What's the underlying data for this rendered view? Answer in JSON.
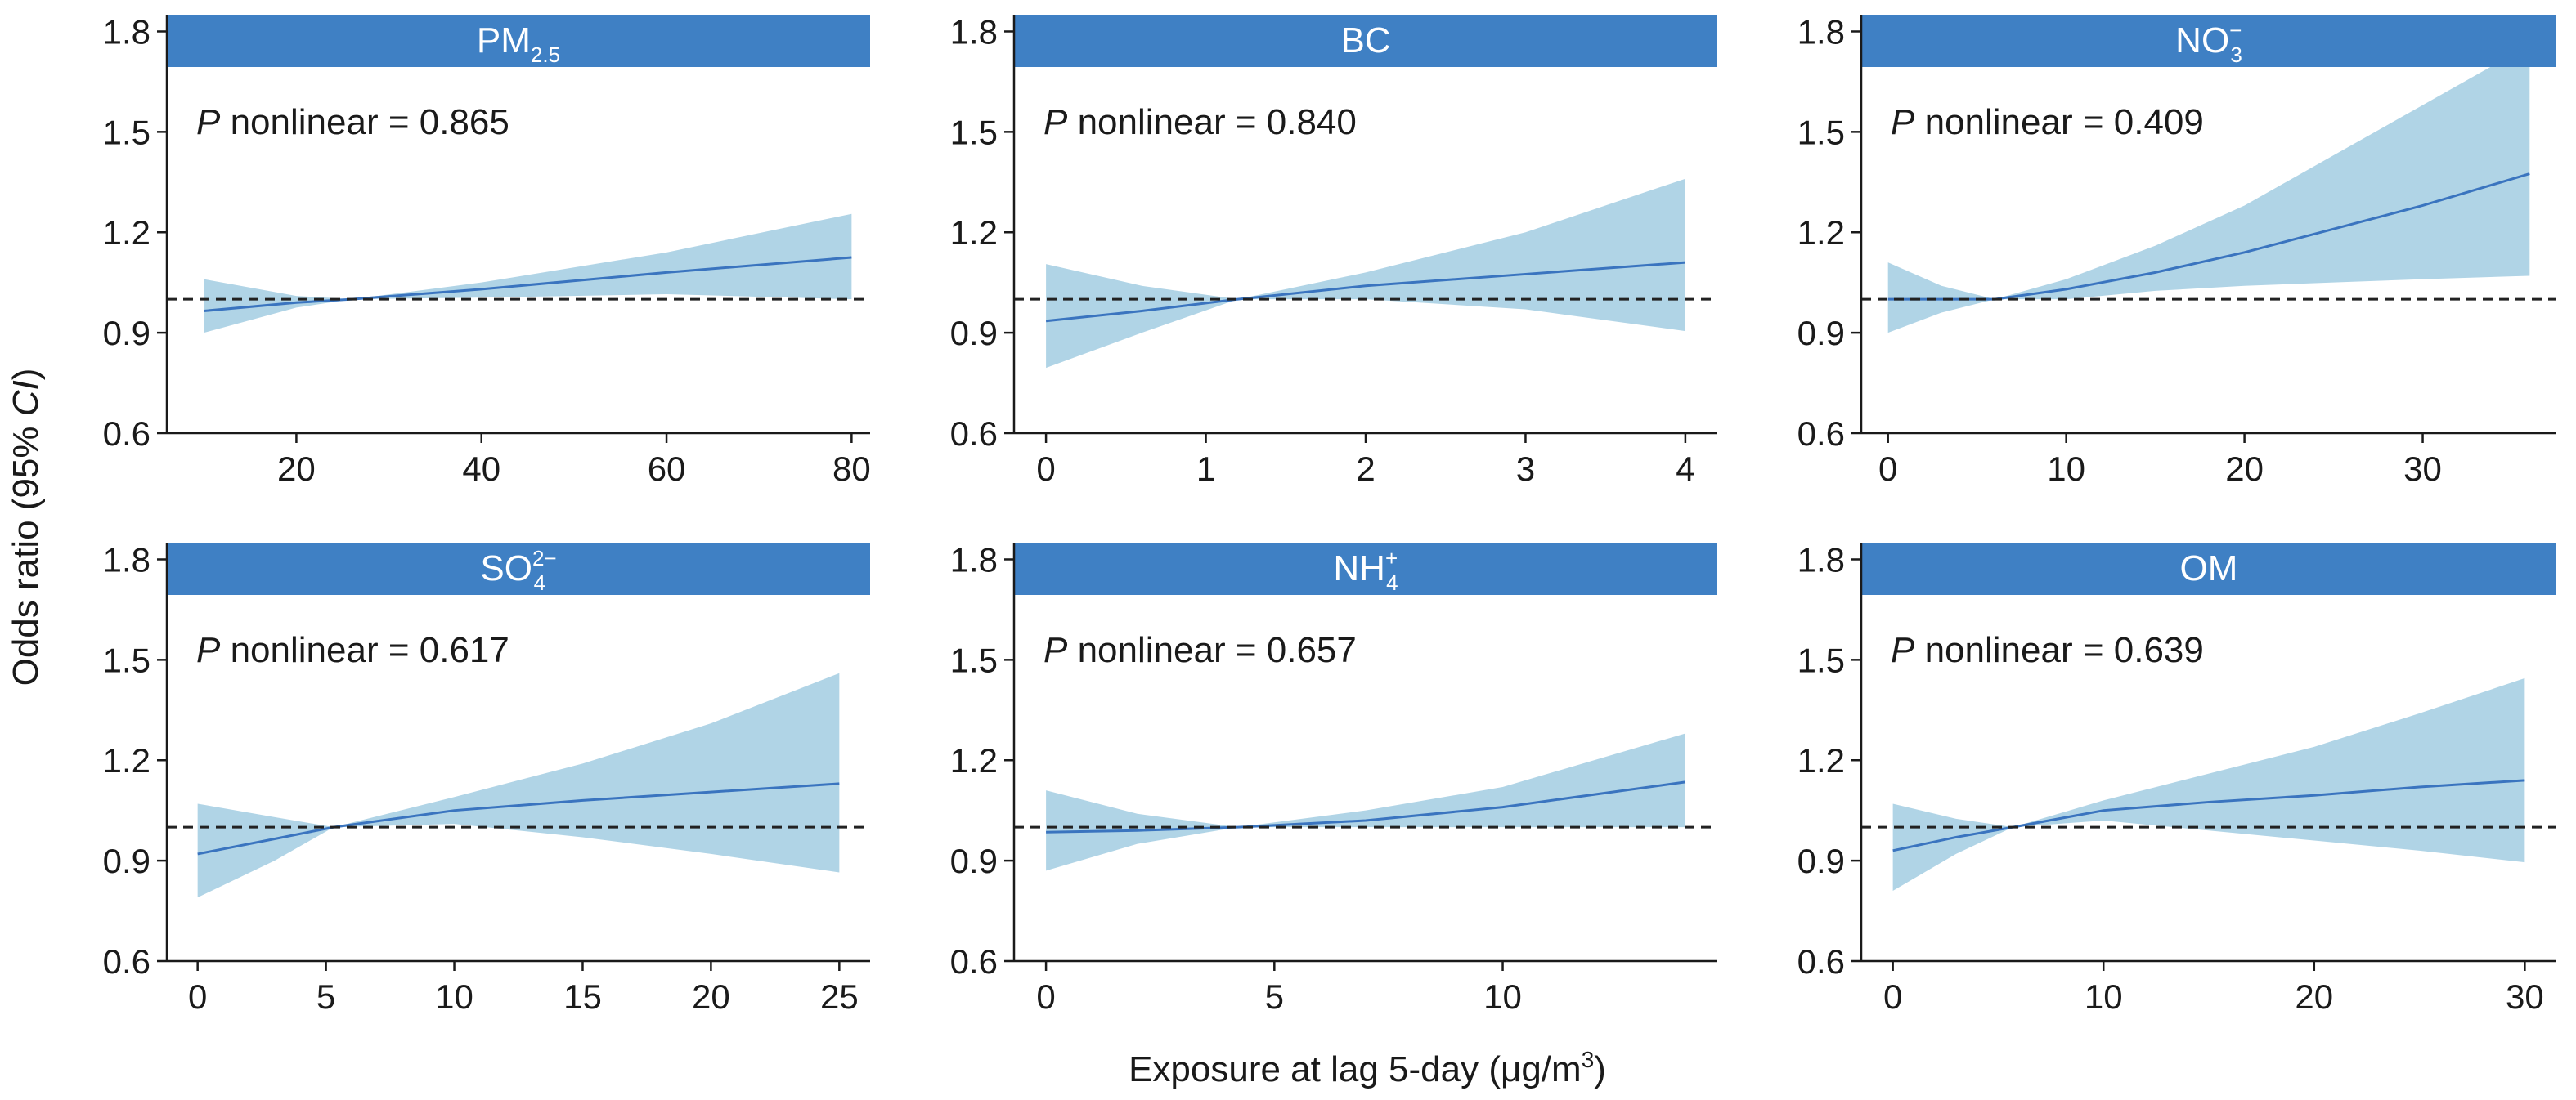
{
  "figure": {
    "ylabel_prefix": "Odds ratio (95% ",
    "ylabel_italic": "CI",
    "ylabel_suffix": ")",
    "xlabel_prefix": "Exposure at lag 5-day (μg/m",
    "xlabel_sup": "3",
    "xlabel_suffix": ")"
  },
  "colors": {
    "strip": "#3f80c4",
    "band": "#b0d4e6",
    "line": "#3a74bf",
    "reference": "#222222"
  },
  "chart_data": [
    {
      "type": "line",
      "title": "PM",
      "title_sub": "2.5",
      "title_sup": "",
      "p_label": "P",
      "p_text": " nonlinear = 0.865",
      "xlim": [
        6,
        82
      ],
      "xticks": [
        20,
        40,
        60,
        80
      ],
      "ylim": [
        0.6,
        1.85
      ],
      "yticks": [
        0.6,
        0.9,
        1.2,
        1.5,
        1.8
      ],
      "ytick_labels": [
        "0.6",
        "0.9",
        "1.2",
        "1.5",
        "1.8"
      ],
      "reference_y": 1.0,
      "x": [
        10,
        20,
        26,
        40,
        60,
        80
      ],
      "or": [
        0.965,
        0.99,
        1.0,
        1.03,
        1.08,
        1.125
      ],
      "lower": [
        0.9,
        0.975,
        1.0,
        1.005,
        1.015,
        1.0
      ],
      "upper": [
        1.06,
        1.01,
        1.0,
        1.05,
        1.14,
        1.255
      ]
    },
    {
      "type": "line",
      "title": "BC",
      "title_sub": "",
      "title_sup": "",
      "p_label": "P",
      "p_text": " nonlinear = 0.840",
      "xlim": [
        -0.2,
        4.2
      ],
      "xticks": [
        0,
        1,
        2,
        3,
        4
      ],
      "ylim": [
        0.6,
        1.85
      ],
      "yticks": [
        0.6,
        0.9,
        1.2,
        1.5,
        1.8
      ],
      "ytick_labels": [
        "0.6",
        "0.9",
        "1.2",
        "1.5",
        "1.8"
      ],
      "reference_y": 1.0,
      "x": [
        0,
        0.6,
        1.2,
        2,
        3,
        4
      ],
      "or": [
        0.935,
        0.965,
        1.0,
        1.04,
        1.075,
        1.11
      ],
      "lower": [
        0.795,
        0.9,
        1.0,
        1.0,
        0.97,
        0.905
      ],
      "upper": [
        1.105,
        1.04,
        1.0,
        1.08,
        1.2,
        1.36
      ]
    },
    {
      "type": "line",
      "title": "NO",
      "title_sub": "3",
      "title_sup": "−",
      "p_label": "P",
      "p_text": " nonlinear = 0.409",
      "xlim": [
        -1.5,
        37.5
      ],
      "xticks": [
        0,
        10,
        20,
        30
      ],
      "ylim": [
        0.6,
        1.85
      ],
      "yticks": [
        0.6,
        0.9,
        1.2,
        1.5,
        1.8
      ],
      "ytick_labels": [
        "0.6",
        "0.9",
        "1.2",
        "1.5",
        "1.8"
      ],
      "reference_y": 1.0,
      "x": [
        0,
        3,
        6,
        10,
        15,
        20,
        25,
        30,
        36
      ],
      "or": [
        1.0,
        1.0,
        1.0,
        1.03,
        1.08,
        1.14,
        1.21,
        1.28,
        1.375
      ],
      "lower": [
        0.9,
        0.96,
        1.0,
        1.0,
        1.025,
        1.04,
        1.05,
        1.06,
        1.07
      ],
      "upper": [
        1.11,
        1.04,
        1.0,
        1.06,
        1.16,
        1.28,
        1.43,
        1.58,
        1.76
      ]
    },
    {
      "type": "line",
      "title": "SO",
      "title_sub": "4",
      "title_sup": "2−",
      "p_label": "P",
      "p_text": " nonlinear = 0.617",
      "xlim": [
        -1.2,
        26.2
      ],
      "xticks": [
        0,
        5,
        10,
        15,
        20,
        25
      ],
      "ylim": [
        0.6,
        1.85
      ],
      "yticks": [
        0.6,
        0.9,
        1.2,
        1.5,
        1.8
      ],
      "ytick_labels": [
        "0.6",
        "0.9",
        "1.2",
        "1.5",
        "1.8"
      ],
      "reference_y": 1.0,
      "x": [
        0,
        3,
        5.3,
        10,
        15,
        20,
        25
      ],
      "or": [
        0.92,
        0.965,
        1.0,
        1.05,
        1.08,
        1.105,
        1.13
      ],
      "lower": [
        0.79,
        0.9,
        1.0,
        1.01,
        0.97,
        0.92,
        0.865
      ],
      "upper": [
        1.07,
        1.03,
        1.0,
        1.09,
        1.19,
        1.31,
        1.46
      ]
    },
    {
      "type": "line",
      "title": "NH",
      "title_sub": "4",
      "title_sup": "+",
      "p_label": "P",
      "p_text": " nonlinear = 0.657",
      "xlim": [
        -0.7,
        14.7
      ],
      "xticks": [
        0,
        5,
        10
      ],
      "ylim": [
        0.6,
        1.85
      ],
      "yticks": [
        0.6,
        0.9,
        1.2,
        1.5,
        1.8
      ],
      "ytick_labels": [
        "0.6",
        "0.9",
        "1.2",
        "1.5",
        "1.8"
      ],
      "reference_y": 1.0,
      "x": [
        0,
        2,
        4.2,
        7,
        10,
        14
      ],
      "or": [
        0.985,
        0.99,
        1.0,
        1.02,
        1.06,
        1.135
      ],
      "lower": [
        0.87,
        0.95,
        1.0,
        1.0,
        1.0,
        1.0
      ],
      "upper": [
        1.11,
        1.04,
        1.0,
        1.05,
        1.12,
        1.28
      ]
    },
    {
      "type": "line",
      "title": "OM",
      "title_sub": "",
      "title_sup": "",
      "p_label": "P",
      "p_text": " nonlinear = 0.639",
      "xlim": [
        -1.5,
        31.5
      ],
      "xticks": [
        0,
        10,
        20,
        30
      ],
      "ylim": [
        0.6,
        1.85
      ],
      "yticks": [
        0.6,
        0.9,
        1.2,
        1.5,
        1.8
      ],
      "ytick_labels": [
        "0.6",
        "0.9",
        "1.2",
        "1.5",
        "1.8"
      ],
      "reference_y": 1.0,
      "x": [
        0,
        3,
        5.7,
        10,
        15,
        20,
        25,
        30
      ],
      "or": [
        0.93,
        0.97,
        1.0,
        1.05,
        1.075,
        1.095,
        1.12,
        1.14
      ],
      "lower": [
        0.81,
        0.92,
        1.0,
        1.02,
        0.99,
        0.96,
        0.93,
        0.895
      ],
      "upper": [
        1.07,
        1.025,
        1.0,
        1.08,
        1.16,
        1.24,
        1.34,
        1.445
      ]
    }
  ]
}
